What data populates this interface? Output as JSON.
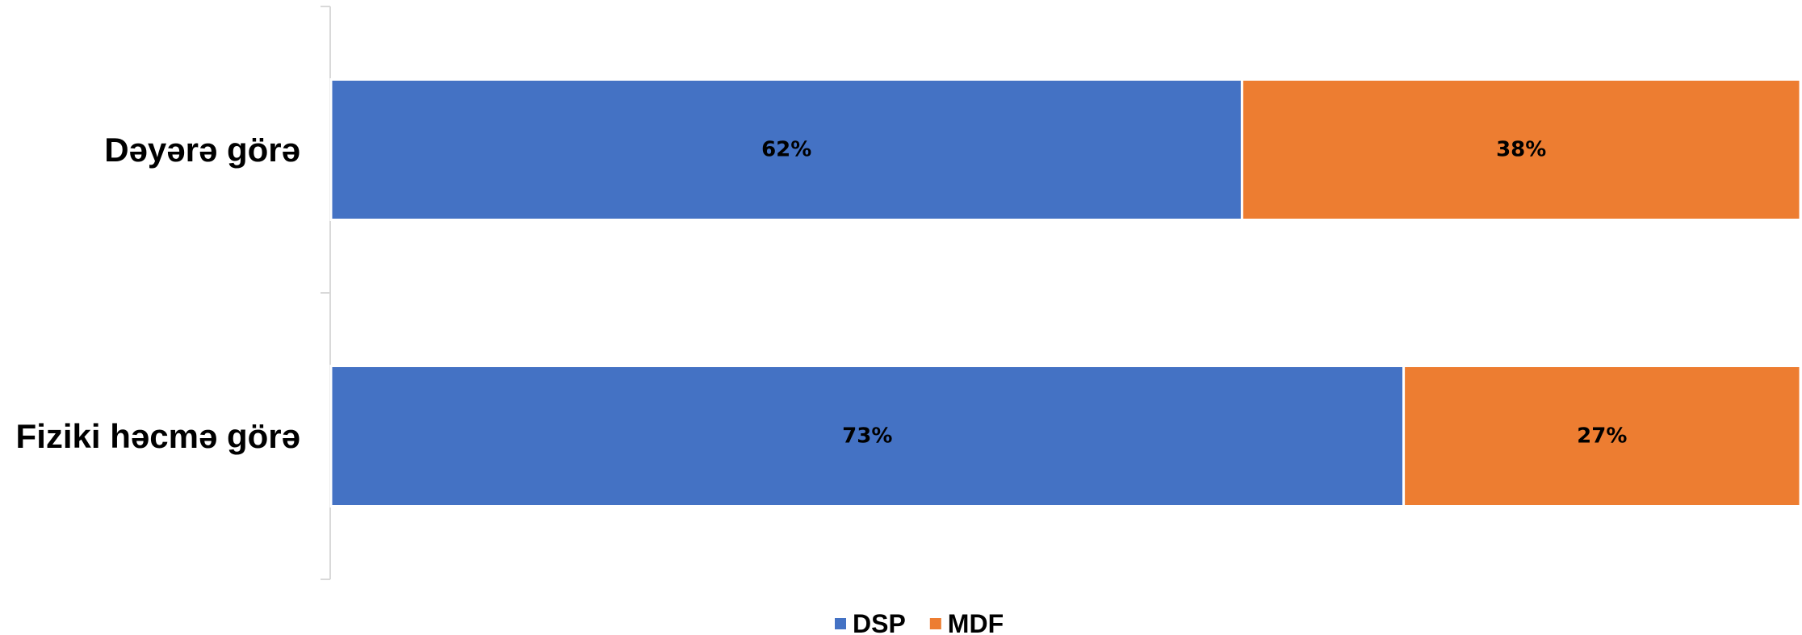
{
  "chart_data": {
    "type": "bar",
    "orientation": "horizontal",
    "stacked": "percent",
    "categories": [
      "Dəyərə görə",
      "Fiziki həcmə görə"
    ],
    "series": [
      {
        "name": "DSP",
        "values": [
          62,
          73
        ],
        "labels": [
          "62%",
          "73%"
        ],
        "color": "#4472C4"
      },
      {
        "name": "MDF",
        "values": [
          38,
          27
        ],
        "labels": [
          "38%",
          "27%"
        ],
        "color": "#ED7D31"
      }
    ],
    "xlim": [
      0,
      100
    ],
    "grid": false,
    "legend": "bottom"
  }
}
